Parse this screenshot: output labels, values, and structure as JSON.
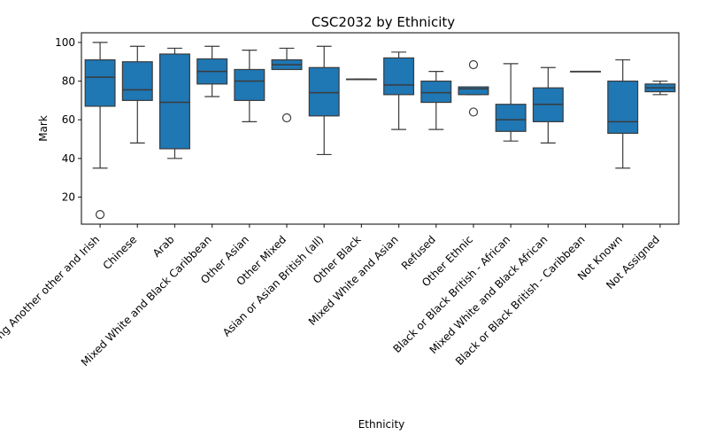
{
  "chart_data": {
    "type": "box",
    "title": "CSC2032 by Ethnicity",
    "xlabel": "Ethnicity",
    "ylabel": "Mark",
    "ylim": [
      6,
      105
    ],
    "yticks": [
      20,
      40,
      60,
      80,
      100
    ],
    "box_color": "#1f77b4",
    "categories": [
      "White including Another other and Irish",
      "Chinese",
      "Arab",
      "Mixed White and Black Caribbean",
      "Other Asian",
      "Other Mixed",
      "Asian or Asian British (all)",
      "Other Black",
      "Mixed White and Asian",
      "Refused",
      "Other Ethnic",
      "Black or Black British - African",
      "Mixed White and Black African",
      "Black or Black British - Caribbean",
      "Not Known",
      "Not Assigned"
    ],
    "boxes": [
      {
        "min": 35,
        "q1": 67,
        "median": 82,
        "q3": 91,
        "max": 100,
        "outliers": [
          11
        ]
      },
      {
        "min": 48,
        "q1": 70,
        "median": 75.5,
        "q3": 90,
        "max": 98,
        "outliers": []
      },
      {
        "min": 40,
        "q1": 45,
        "median": 69,
        "q3": 94,
        "max": 97,
        "outliers": []
      },
      {
        "min": 72,
        "q1": 78.5,
        "median": 85,
        "q3": 91.5,
        "max": 98,
        "outliers": []
      },
      {
        "min": 59,
        "q1": 70,
        "median": 80,
        "q3": 86,
        "max": 96,
        "outliers": []
      },
      {
        "min": 86,
        "q1": 86,
        "median": 88.5,
        "q3": 91,
        "max": 97,
        "outliers": [
          61
        ]
      },
      {
        "min": 42,
        "q1": 62,
        "median": 74,
        "q3": 87,
        "max": 98,
        "outliers": []
      },
      {
        "min": 81,
        "q1": 81,
        "median": 81,
        "q3": 81,
        "max": 81,
        "outliers": []
      },
      {
        "min": 55,
        "q1": 73,
        "median": 78,
        "q3": 92,
        "max": 95,
        "outliers": []
      },
      {
        "min": 55,
        "q1": 69,
        "median": 74,
        "q3": 80,
        "max": 85,
        "outliers": []
      },
      {
        "min": 73,
        "q1": 73,
        "median": 76,
        "q3": 77,
        "max": 77,
        "outliers": [
          88.5,
          64
        ]
      },
      {
        "min": 49,
        "q1": 54,
        "median": 60,
        "q3": 68,
        "max": 89,
        "outliers": []
      },
      {
        "min": 48,
        "q1": 59,
        "median": 68,
        "q3": 76.5,
        "max": 87,
        "outliers": []
      },
      {
        "min": 85,
        "q1": 85,
        "median": 85,
        "q3": 85,
        "max": 85,
        "outliers": []
      },
      {
        "min": 35,
        "q1": 53,
        "median": 59,
        "q3": 80,
        "max": 91,
        "outliers": []
      },
      {
        "min": 73,
        "q1": 74.5,
        "median": 76.5,
        "q3": 78.5,
        "max": 80,
        "outliers": []
      }
    ]
  }
}
